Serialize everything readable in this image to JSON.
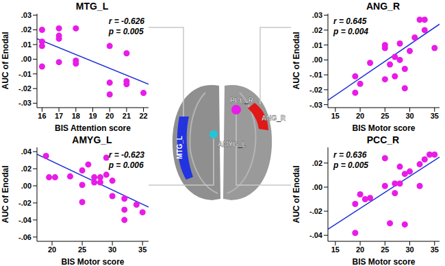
{
  "chart_data": [
    {
      "type": "scatter",
      "title": "MTG_L",
      "x_label": "BIS Attention score",
      "y_label": "AUC of Enodal",
      "color": "#e81be8",
      "marker": "circle",
      "x": [
        16,
        16,
        16,
        16,
        17,
        17,
        17,
        17,
        18,
        18,
        18,
        20,
        20,
        20,
        21,
        21,
        21,
        22
      ],
      "values": [
        0.02,
        0.012,
        0.009,
        -0.005,
        0.021,
        0.016,
        0.014,
        -0.002,
        0.021,
        -0.001,
        -0.003,
        0.009,
        -0.016,
        -0.024,
        0.004,
        -0.015,
        -0.017,
        -0.023
      ],
      "fit_line": {
        "x": [
          15.7,
          22.3
        ],
        "y": [
          0.014,
          -0.017
        ]
      },
      "annotations": [
        "r = -0.626",
        "p = 0.005"
      ],
      "xlim": [
        15.7,
        22.3
      ],
      "xticks": [
        16,
        17,
        18,
        19,
        20,
        21,
        22
      ],
      "ylim": [
        -0.033,
        0.031
      ],
      "yticks": [
        {
          "value": -0.03,
          "label": "-.03"
        },
        {
          "value": -0.02,
          "label": "-.02"
        },
        {
          "value": -0.01,
          "label": "-.01"
        },
        {
          "value": 0,
          "label": ".00"
        },
        {
          "value": 0.01,
          "label": ".01"
        },
        {
          "value": 0.02,
          "label": ".02"
        },
        {
          "value": 0.03,
          "label": ".03"
        }
      ]
    },
    {
      "type": "scatter",
      "title": "AMYG_L",
      "x_label": "BIS Motor score",
      "y_label": "AUC of Enodal",
      "color": "#e81be8",
      "marker": "circle",
      "x": [
        19,
        19.5,
        20.5,
        23,
        25,
        25,
        25,
        26,
        27,
        27,
        28,
        28,
        29,
        29,
        30,
        30,
        32,
        32,
        32,
        34,
        35
      ],
      "values": [
        0.035,
        0.01,
        0.01,
        0.011,
        0.018,
        -0.019,
        0.001,
        0.025,
        0.004,
        0.01,
        0.01,
        0.004,
        0.013,
        0.033,
        0.006,
        -0.012,
        -0.015,
        -0.04,
        -0.028,
        -0.022,
        -0.031
      ],
      "fit_line": {
        "x": [
          17.5,
          36
        ],
        "y": [
          0.037,
          -0.025
        ]
      },
      "annotations": [
        "r = -0.623",
        "p = 0.006"
      ],
      "xlim": [
        17.5,
        36
      ],
      "xticks": [
        20,
        25,
        30,
        35
      ],
      "ylim": [
        -0.065,
        0.045
      ],
      "yticks": [
        {
          "value": -0.06,
          "label": "-.06"
        },
        {
          "value": -0.04,
          "label": "-.04"
        },
        {
          "value": -0.02,
          "label": "-.02"
        },
        {
          "value": 0,
          "label": ".00"
        },
        {
          "value": 0.02,
          "label": ".02"
        },
        {
          "value": 0.04,
          "label": ".04"
        }
      ]
    },
    {
      "type": "scatter",
      "title": "ANG_R",
      "x_label": "BIS Motor score",
      "y_label": "AUC of Enodal",
      "color": "#e81be8",
      "marker": "circle",
      "x": [
        19,
        19,
        20,
        22,
        25,
        25,
        25,
        26,
        27,
        27,
        28,
        28,
        29,
        29,
        30,
        31,
        32,
        33,
        33,
        35
      ],
      "values": [
        -0.011,
        -0.022,
        -0.016,
        -0.002,
        0.01,
        0.008,
        -0.013,
        -0.003,
        0.002,
        -0.011,
        0.011,
        0,
        -0.006,
        -0.019,
        0.006,
        0.015,
        0.027,
        0.027,
        0.02,
        0.008
      ],
      "fit_line": {
        "x": [
          13.5,
          36
        ],
        "y": [
          -0.027,
          0.024
        ]
      },
      "annotations": [
        "r = 0.645",
        "p = 0.004"
      ],
      "xlim": [
        13.5,
        36
      ],
      "xticks": [
        15,
        20,
        25,
        30,
        35
      ],
      "ylim": [
        -0.032,
        0.031
      ],
      "yticks": [
        {
          "value": -0.03,
          "label": "-.03"
        },
        {
          "value": -0.02,
          "label": "-.02"
        },
        {
          "value": -0.01,
          "label": "-.01"
        },
        {
          "value": 0,
          "label": ".00"
        },
        {
          "value": 0.01,
          "label": ".01"
        },
        {
          "value": 0.02,
          "label": ".02"
        },
        {
          "value": 0.03,
          "label": ".03"
        }
      ]
    },
    {
      "type": "scatter",
      "title": "PCC_R",
      "x_label": "BIS Motor score",
      "y_label": "AUC of Enodal",
      "color": "#e81be8",
      "marker": "circle",
      "x": [
        19,
        19,
        20,
        21,
        22,
        25,
        25,
        26,
        27,
        27,
        28,
        28,
        29,
        29,
        30,
        32,
        32,
        33,
        34,
        35
      ],
      "values": [
        -0.038,
        -0.014,
        -0.006,
        -0.01,
        -0.009,
        0.024,
        0.001,
        -0.03,
        -0.005,
        0.003,
        0.017,
        0.003,
        -0.031,
        0.011,
        0.013,
        0.019,
        0.001,
        0.023,
        0.027,
        0.027
      ],
      "fit_line": {
        "x": [
          13.5,
          36
        ],
        "y": [
          -0.035,
          0.025
        ]
      },
      "annotations": [
        "r = 0.636",
        "p = 0.005"
      ],
      "xlim": [
        13.5,
        36
      ],
      "xticks": [
        15,
        20,
        25,
        30,
        35
      ],
      "ylim": [
        -0.045,
        0.033
      ],
      "yticks": [
        {
          "value": -0.04,
          "label": "-.04"
        },
        {
          "value": -0.02,
          "label": "-.02"
        },
        {
          "value": 0,
          "label": ".00"
        },
        {
          "value": 0.02,
          "label": ".02"
        }
      ]
    }
  ]
}
